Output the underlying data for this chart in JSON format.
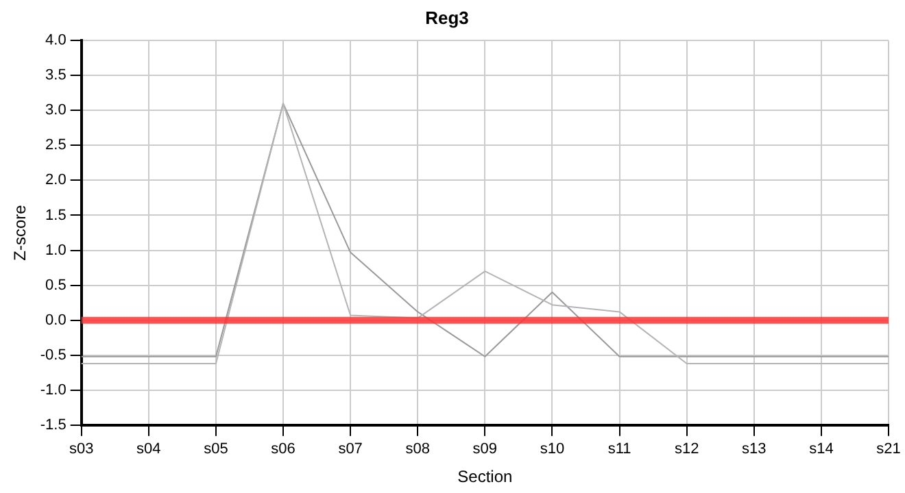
{
  "chart_data": {
    "type": "line",
    "title": "Reg3",
    "xlabel": "Section",
    "ylabel": "Z-score",
    "categories": [
      "s03",
      "s04",
      "s05",
      "s06",
      "s07",
      "s08",
      "s09",
      "s10",
      "s11",
      "s12",
      "s13",
      "s14",
      "s21"
    ],
    "series": [
      {
        "color": "#b4b4b4",
        "values": [
          -0.62,
          -0.62,
          -0.62,
          3.1,
          0.07,
          0.03,
          0.7,
          0.22,
          0.12,
          -0.62,
          -0.62,
          -0.62,
          -0.62
        ]
      },
      {
        "color": "#999999",
        "values": [
          -0.52,
          -0.52,
          -0.52,
          3.1,
          0.97,
          0.12,
          -0.52,
          0.4,
          -0.52,
          -0.52,
          -0.52,
          -0.52,
          -0.52
        ]
      }
    ],
    "ylim": [
      -1.5,
      4.0
    ],
    "yticks": [
      {
        "value": -1.5,
        "label": "-1.5"
      },
      {
        "value": -1,
        "label": "-1.0"
      },
      {
        "value": -0.5,
        "label": "-0.5"
      },
      {
        "value": 0,
        "label": "0.0"
      },
      {
        "value": 0.5,
        "label": "0.5"
      },
      {
        "value": 1,
        "label": "1.0"
      },
      {
        "value": 1.5,
        "label": "1.5"
      },
      {
        "value": 2,
        "label": "2.0"
      },
      {
        "value": 2.5,
        "label": "2.5"
      },
      {
        "value": 3,
        "label": "3.0"
      },
      {
        "value": 3.5,
        "label": "3.5"
      },
      {
        "value": 4,
        "label": "4.0"
      }
    ],
    "ref_lines": [
      {
        "axis": "y",
        "value": 0,
        "color": "#ff3333"
      }
    ],
    "grid": true,
    "legend": false,
    "marker": "none",
    "line_style": "solid"
  }
}
